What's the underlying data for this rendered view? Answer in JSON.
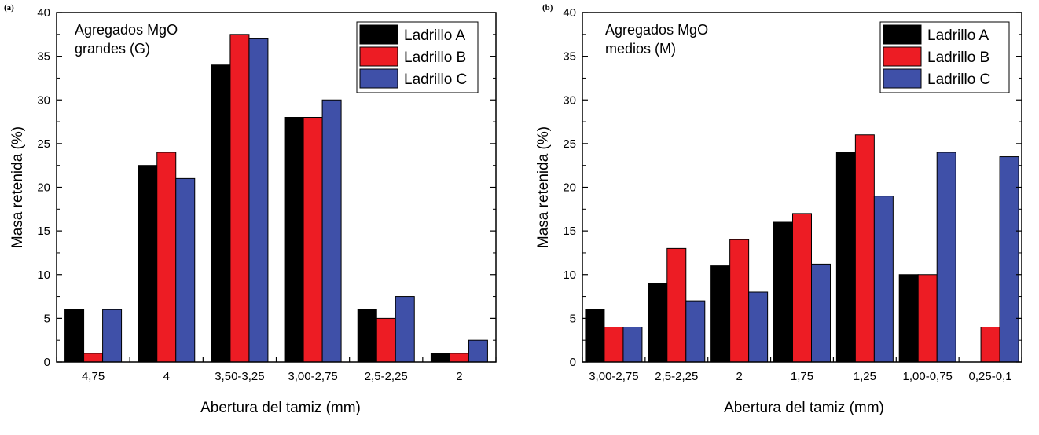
{
  "panels": [
    {
      "panel_label": "(a)"
    },
    {
      "panel_label": "(b)"
    }
  ],
  "colors": {
    "Ladrillo A": "#000000",
    "Ladrillo B": "#ed1c24",
    "Ladrillo C": "#3f50a8"
  },
  "chart_data": [
    {
      "type": "bar",
      "annotation": [
        "Agregados MgO",
        "grandes (G)"
      ],
      "xlabel": "Abertura del tamiz (mm)",
      "ylabel": "Masa retenida (%)",
      "ylim": [
        0,
        40
      ],
      "yticks": [
        "0",
        "5",
        "10",
        "15",
        "20",
        "25",
        "30",
        "35",
        "40"
      ],
      "categories": [
        "4,75",
        "4",
        "3,50-3,25",
        "3,00-2,75",
        "2,5-2,25",
        "2"
      ],
      "series": [
        {
          "name": "Ladrillo A",
          "values": [
            6,
            22.5,
            34,
            28,
            6,
            1
          ]
        },
        {
          "name": "Ladrillo B",
          "values": [
            1,
            24,
            37.5,
            28,
            5,
            1
          ]
        },
        {
          "name": "Ladrillo C",
          "values": [
            6,
            21,
            37,
            30,
            7.5,
            2.5
          ]
        }
      ],
      "legend_position": "top-right",
      "grid": false
    },
    {
      "type": "bar",
      "annotation": [
        "Agregados MgO",
        "medios (M)"
      ],
      "xlabel": "Abertura del tamiz (mm)",
      "ylabel": "Masa retenida (%)",
      "ylim": [
        0,
        40
      ],
      "yticks": [
        "0",
        "5",
        "10",
        "15",
        "20",
        "25",
        "30",
        "35",
        "40"
      ],
      "categories": [
        "3,00-2,75",
        "2,5-2,25",
        "2",
        "1,75",
        "1,25",
        "1,00-0,75",
        "0,25-0,1"
      ],
      "series": [
        {
          "name": "Ladrillo A",
          "values": [
            6,
            9,
            11,
            16,
            24,
            10,
            0
          ]
        },
        {
          "name": "Ladrillo B",
          "values": [
            4,
            13,
            14,
            17,
            26,
            10,
            4
          ]
        },
        {
          "name": "Ladrillo C",
          "values": [
            4,
            7,
            8,
            11.2,
            19,
            24,
            23.5
          ]
        }
      ],
      "legend_position": "top-right",
      "grid": false
    }
  ]
}
